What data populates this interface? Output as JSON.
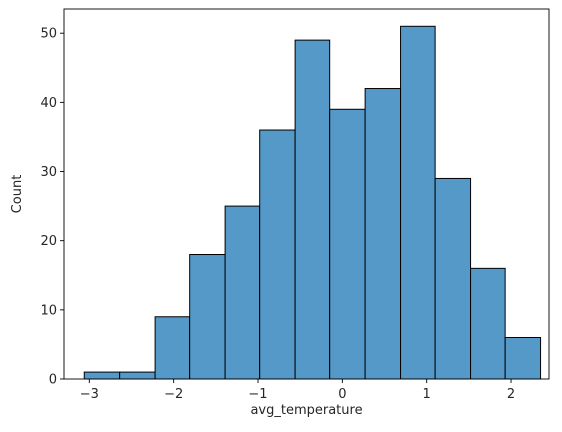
{
  "chart_data": {
    "type": "bar",
    "subtype": "histogram",
    "xlabel": "avg_temperature",
    "ylabel": "Count",
    "bin_edges": [
      -3.06,
      -2.64,
      -2.22,
      -1.81,
      -1.39,
      -0.98,
      -0.56,
      -0.15,
      0.27,
      0.69,
      1.1,
      1.52,
      1.93,
      2.35
    ],
    "values": [
      1,
      1,
      9,
      18,
      25,
      36,
      49,
      39,
      42,
      51,
      29,
      16,
      6
    ],
    "xlim": [
      -3.3,
      2.45
    ],
    "ylim": [
      0,
      53.5
    ],
    "xticks": [
      -3,
      -2,
      -1,
      0,
      1,
      2
    ],
    "yticks": [
      0,
      10,
      20,
      30,
      40,
      50
    ],
    "bar_color": "#5499c7",
    "edge_color": "#000000",
    "grid": false
  }
}
